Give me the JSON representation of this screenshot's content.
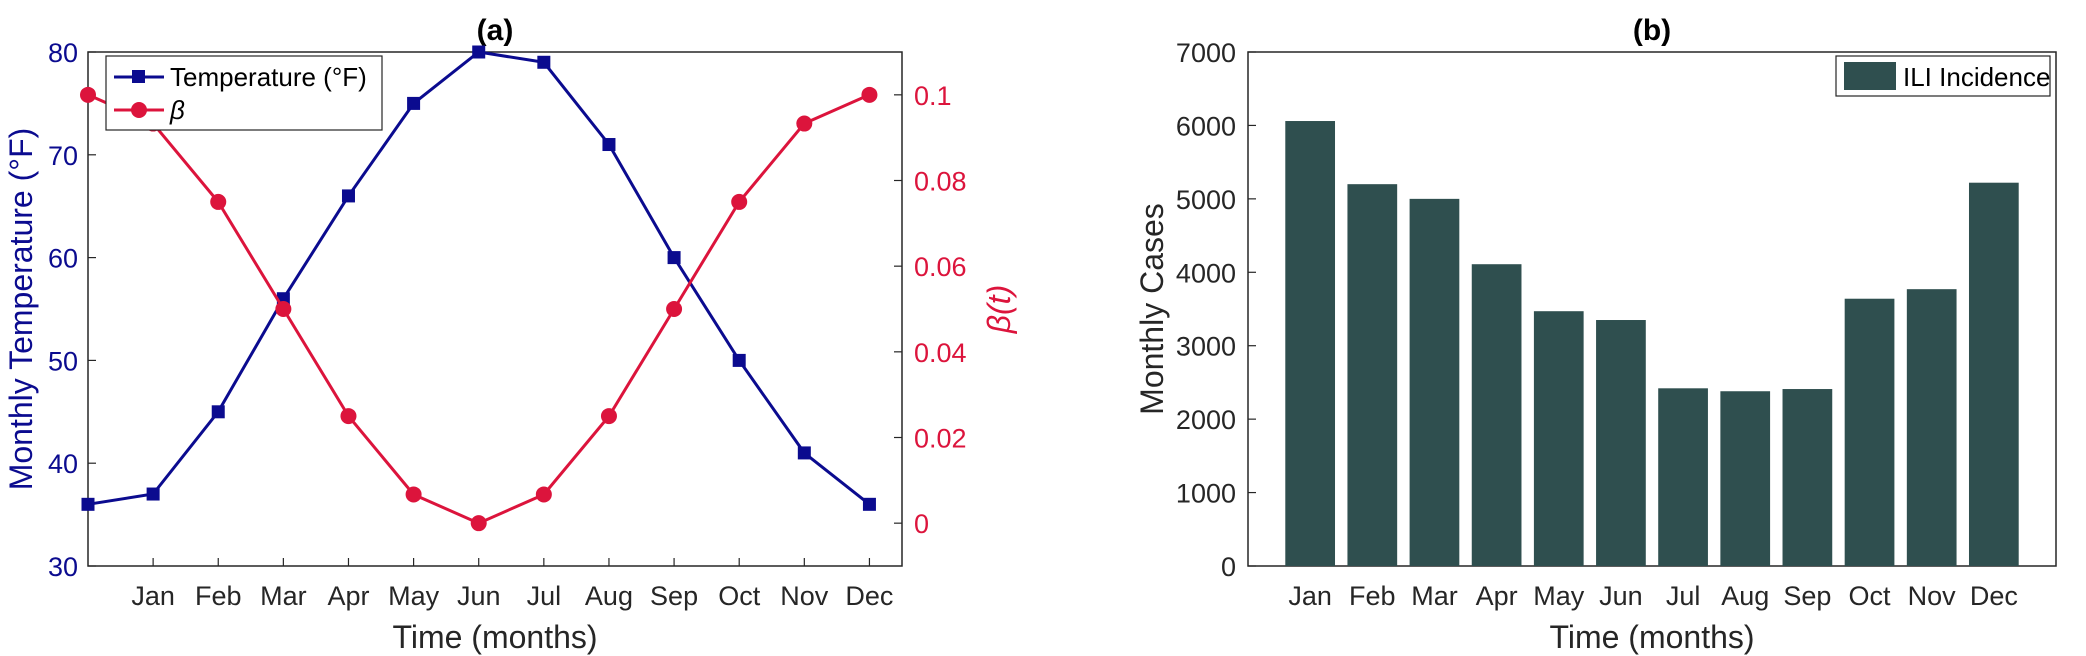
{
  "colors": {
    "temperature": "#0b0b8f",
    "beta": "#dc143c",
    "bars": "#2f4f4f",
    "axis": "#262626"
  },
  "chart_data": [
    {
      "type": "line",
      "title": "(a)",
      "xlabel": "Time (months)",
      "ylabel": "Monthly Temperature (°F)",
      "ylabel_right": "β(t)",
      "categories": [
        "Jan",
        "Feb",
        "Mar",
        "Apr",
        "May",
        "Jun",
        "Jul",
        "Aug",
        "Sep",
        "Oct",
        "Nov",
        "Dec"
      ],
      "x_positions": [
        0,
        1,
        2,
        3,
        4,
        5,
        6,
        7,
        8,
        9,
        10,
        11,
        12
      ],
      "xlim": [
        0,
        12.5
      ],
      "ylim": [
        30,
        80
      ],
      "yticks": [
        30,
        40,
        50,
        60,
        70,
        80
      ],
      "ylim_right": [
        -0.01,
        0.11
      ],
      "yticks_right": [
        0,
        0.02,
        0.04,
        0.06,
        0.08,
        0.1
      ],
      "ytick_labels_right": [
        "0",
        "0.02",
        "0.04",
        "0.06",
        "0.08",
        "0.1"
      ],
      "legend_position": "top-left",
      "series": [
        {
          "name": "Temperature (°F)",
          "axis": "left",
          "marker": "square",
          "x": [
            0,
            1,
            2,
            3,
            4,
            5,
            6,
            7,
            8,
            9,
            10,
            11,
            12
          ],
          "values": [
            36,
            37,
            45,
            56,
            66,
            75,
            80,
            79,
            71,
            60,
            50,
            41,
            36
          ]
        },
        {
          "name": "β",
          "axis": "right",
          "marker": "circle",
          "x": [
            0,
            1,
            2,
            3,
            4,
            5,
            6,
            7,
            8,
            9,
            10,
            11,
            12
          ],
          "values": [
            0.1,
            0.0933,
            0.075,
            0.05,
            0.025,
            0.0067,
            0,
            0.0067,
            0.025,
            0.05,
            0.075,
            0.0933,
            0.1
          ]
        }
      ]
    },
    {
      "type": "bar",
      "title": "(b)",
      "xlabel": "Time (months)",
      "ylabel": "Monthly Cases",
      "categories": [
        "Jan",
        "Feb",
        "Mar",
        "Apr",
        "May",
        "Jun",
        "Jul",
        "Aug",
        "Sep",
        "Oct",
        "Nov",
        "Dec"
      ],
      "ylim": [
        0,
        7000
      ],
      "yticks": [
        0,
        1000,
        2000,
        3000,
        4000,
        5000,
        6000,
        7000
      ],
      "legend_position": "top-right",
      "series": [
        {
          "name": "ILI Incidence",
          "values": [
            6060,
            5200,
            5000,
            4110,
            3470,
            3350,
            2420,
            2380,
            2410,
            3640,
            3770,
            5220
          ]
        }
      ]
    }
  ]
}
